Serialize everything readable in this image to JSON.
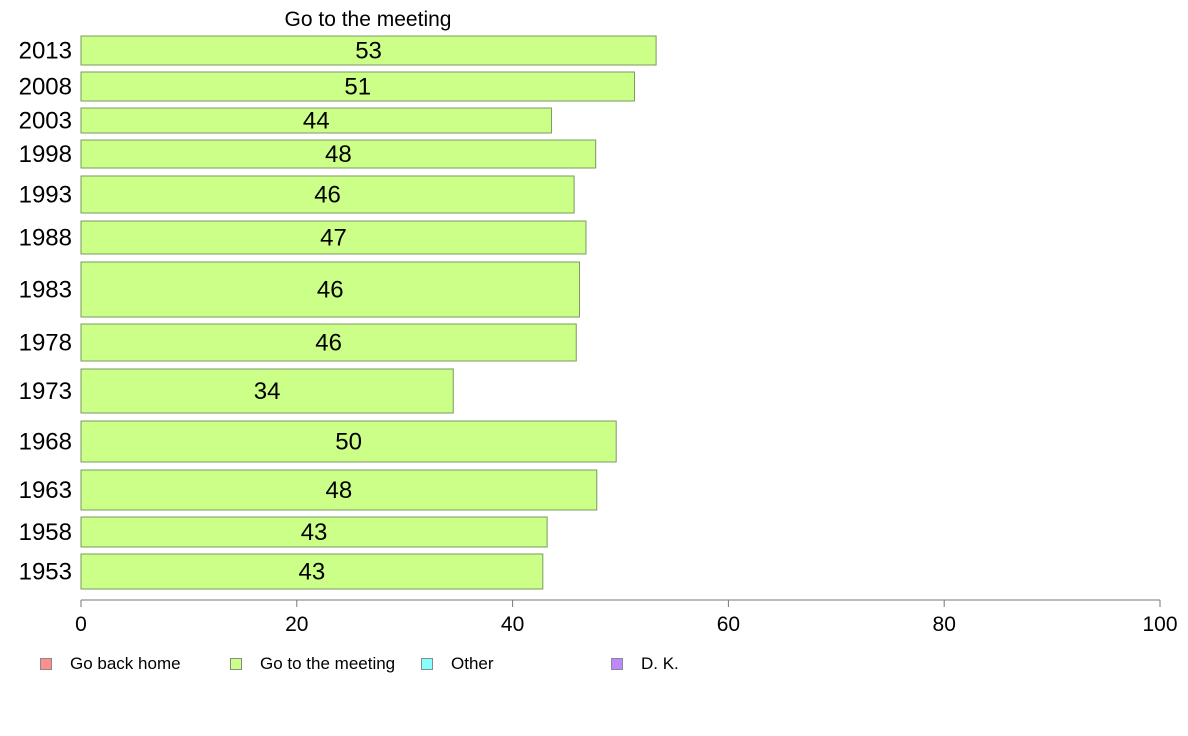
{
  "chart_data": {
    "type": "bar",
    "orientation": "horizontal",
    "title": "Go to the meeting",
    "categories": [
      "2013",
      "2008",
      "2003",
      "1998",
      "1993",
      "1988",
      "1983",
      "1978",
      "1973",
      "1968",
      "1963",
      "1958",
      "1953"
    ],
    "values": [
      53,
      51,
      44,
      48,
      46,
      47,
      46,
      46,
      34,
      50,
      48,
      43,
      43
    ],
    "exact_values": [
      53.3,
      51.3,
      43.6,
      47.7,
      45.7,
      46.8,
      46.2,
      45.9,
      34.5,
      49.6,
      47.8,
      43.2,
      42.8
    ],
    "data_labels": [
      "53",
      "51",
      "44",
      "48",
      "46",
      "47",
      "46",
      "46",
      "34",
      "50",
      "48",
      "43",
      "43"
    ],
    "xlim": [
      0,
      100
    ],
    "x_ticks": [
      0,
      20,
      40,
      60,
      80,
      100
    ],
    "x_tick_labels": [
      "0",
      "20",
      "40",
      "60",
      "80",
      "100"
    ],
    "xlabel": "",
    "ylabel": "",
    "grid": false,
    "bar_color": "#ccff88",
    "bar_border_color": "#7a9a60",
    "legend_position": "bottom-left",
    "legend": [
      {
        "label": "Go back home",
        "color": "#ff8e8e"
      },
      {
        "label": "Go to the meeting",
        "color": "#ccff88"
      },
      {
        "label": "Other",
        "color": "#88ffff"
      },
      {
        "label": "D. K.",
        "color": "#bb88ff"
      }
    ]
  }
}
